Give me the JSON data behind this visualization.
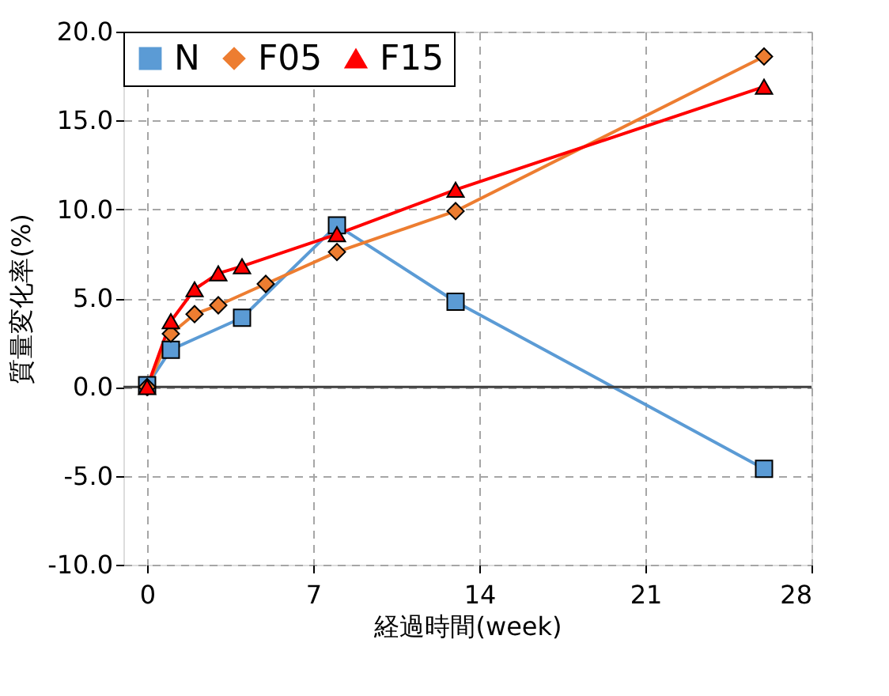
{
  "chart_data": {
    "type": "line",
    "xlabel": "経過時間(week)",
    "ylabel": "質量変化率(%)",
    "series": [
      {
        "name": "N",
        "color": "#5b9bd5",
        "marker": "square",
        "x": [
          0,
          1,
          4,
          8,
          13,
          26
        ],
        "values": [
          0.1,
          2.1,
          3.9,
          9.1,
          4.8,
          -4.6
        ]
      },
      {
        "name": "F05",
        "color": "#ed7d31",
        "marker": "diamond",
        "x": [
          0,
          1,
          2,
          3,
          5,
          8,
          13,
          26
        ],
        "values": [
          0,
          3.0,
          4.1,
          4.6,
          5.8,
          7.6,
          9.9,
          18.6
        ]
      },
      {
        "name": "F15",
        "color": "#ff0000",
        "marker": "triangle",
        "x": [
          0,
          1,
          2,
          3,
          4,
          8,
          13,
          26
        ],
        "values": [
          0,
          3.7,
          5.5,
          6.4,
          6.8,
          8.6,
          11.1,
          16.9
        ]
      }
    ],
    "xlim": [
      -1,
      28
    ],
    "xticks": [
      0,
      7,
      14,
      21,
      28
    ],
    "ylim": [
      -10,
      20
    ],
    "yticks": [
      {
        "value": -10,
        "label": "-10.0"
      },
      {
        "value": -5,
        "label": "-5.0"
      },
      {
        "value": 0,
        "label": "0.0"
      },
      {
        "value": 5,
        "label": "5.0"
      },
      {
        "value": 10,
        "label": "10.0"
      },
      {
        "value": 15,
        "label": "15.0"
      },
      {
        "value": 20,
        "label": "20.0"
      }
    ],
    "ref_lines": [
      {
        "axis": "y",
        "value": 0,
        "color": "#404040",
        "line_style": "solid"
      }
    ],
    "grid": true,
    "legend": "top left",
    "line_style": "solid"
  }
}
